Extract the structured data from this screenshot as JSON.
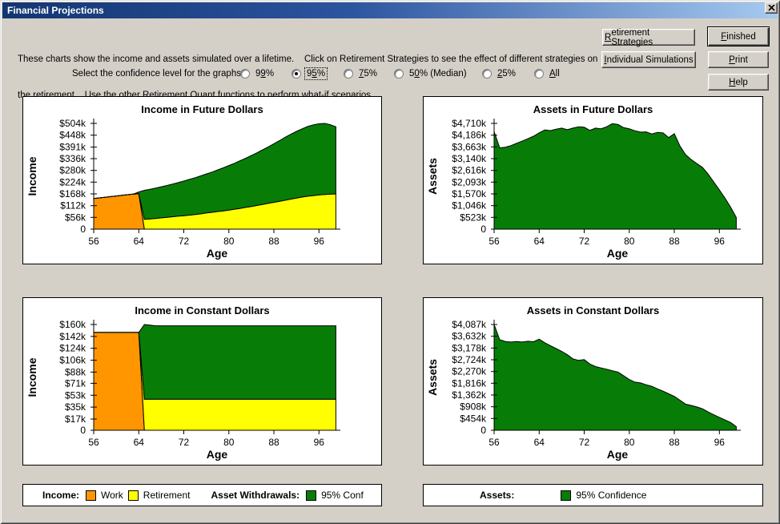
{
  "window": {
    "title": "Financial Projections"
  },
  "instructions": {
    "line1": "These charts show the income and assets simulated over a lifetime.    Click on Retirement Strategies to see the effect of different strategies on",
    "line2": "the retirement.   Use the other Retirement Quant functions to perform what-if scenarios."
  },
  "confidence": {
    "label": "Select the confidence level for the graphs",
    "options": [
      {
        "label": "99%",
        "accel_index": 1,
        "selected": false
      },
      {
        "label": "95%",
        "accel_index": 1,
        "selected": true
      },
      {
        "label": "75%",
        "accel_index": 0,
        "selected": false
      },
      {
        "label": "50% (Median)",
        "accel_index": 1,
        "selected": false
      },
      {
        "label": "25%",
        "accel_index": 0,
        "selected": false
      },
      {
        "label": "All",
        "accel_index": 0,
        "selected": false
      }
    ]
  },
  "buttons": {
    "retirement_strategies": {
      "label": "Retirement Strategies",
      "accel_index": 0
    },
    "finished": {
      "label": "Finished",
      "accel_index": 0
    },
    "individual_simulations": {
      "label": "Individual Simulations",
      "accel_index": 0
    },
    "print": {
      "label": "Print",
      "accel_index": 0
    },
    "help": {
      "label": "Help",
      "accel_index": 0
    }
  },
  "legend_income": {
    "income_label": "Income:",
    "work_label": "Work",
    "retirement_label": "Retirement",
    "withdrawals_label": "Asset Withdrawals:",
    "withdrawals_conf_label": "95% Conf"
  },
  "legend_assets": {
    "assets_label": "Assets:",
    "conf_label": "95% Confidence"
  },
  "colors": {
    "work": "#FF9600",
    "retirement": "#FFFF00",
    "confidence": "#077D07",
    "axis": "#000000"
  },
  "chart_data": [
    {
      "id": "income-future",
      "type": "area",
      "stacked": true,
      "title": "Income in Future Dollars",
      "xlabel": "Age",
      "ylabel": "Income",
      "x": [
        56,
        57,
        58,
        59,
        60,
        61,
        62,
        63,
        64,
        65,
        66,
        67,
        68,
        69,
        70,
        71,
        72,
        73,
        74,
        75,
        76,
        77,
        78,
        79,
        80,
        81,
        82,
        83,
        84,
        85,
        86,
        87,
        88,
        89,
        90,
        91,
        92,
        93,
        94,
        95,
        96,
        97,
        98,
        99
      ],
      "series": [
        {
          "name": "Work",
          "color_key": "work",
          "values": [
            146,
            149,
            152,
            155,
            158,
            161,
            164,
            167,
            169,
            0,
            0,
            0,
            0,
            0,
            0,
            0,
            0,
            0,
            0,
            0,
            0,
            0,
            0,
            0,
            0,
            0,
            0,
            0,
            0,
            0,
            0,
            0,
            0,
            0,
            0,
            0,
            0,
            0,
            0,
            0,
            0,
            0,
            0,
            0
          ]
        },
        {
          "name": "Retirement",
          "color_key": "retirement",
          "values": [
            0,
            0,
            0,
            0,
            0,
            0,
            0,
            0,
            0,
            47,
            49,
            51,
            54,
            56,
            59,
            62,
            64,
            67,
            70,
            73,
            77,
            80,
            84,
            87,
            91,
            95,
            99,
            104,
            108,
            113,
            118,
            123,
            128,
            133,
            138,
            143,
            148,
            153,
            157,
            160,
            163,
            165,
            167,
            168
          ]
        },
        {
          "name": "Asset Withdrawals 95% Conf",
          "color_key": "confidence",
          "values": [
            0,
            0,
            0,
            0,
            0,
            0,
            0,
            0,
            8,
            138,
            141,
            145,
            148,
            152,
            156,
            160,
            165,
            170,
            175,
            181,
            186,
            192,
            198,
            205,
            212,
            219,
            227,
            234,
            243,
            251,
            260,
            269,
            279,
            289,
            300,
            309,
            318,
            325,
            332,
            337,
            339,
            339,
            331,
            320
          ]
        }
      ],
      "yticks": {
        "values": [
          0,
          56,
          112,
          168,
          224,
          280,
          336,
          391,
          448,
          504
        ],
        "labels": [
          "0",
          "$56k",
          "$112k",
          "$168k",
          "$224k",
          "$280k",
          "$336k",
          "$391k",
          "$448k",
          "$504k"
        ]
      },
      "xticks": [
        56,
        64,
        72,
        80,
        88,
        96
      ],
      "xlim": [
        56,
        99.8
      ],
      "ylim": [
        0,
        504
      ],
      "grid": false,
      "units": "thousands of dollars"
    },
    {
      "id": "assets-future",
      "type": "area",
      "stacked": false,
      "title": "Assets in Future Dollars",
      "xlabel": "Age",
      "ylabel": "Assets",
      "x": [
        56,
        57,
        58,
        59,
        60,
        61,
        62,
        63,
        64,
        65,
        66,
        67,
        68,
        69,
        70,
        71,
        72,
        73,
        74,
        75,
        76,
        77,
        78,
        79,
        80,
        81,
        82,
        83,
        84,
        85,
        86,
        87,
        88,
        89,
        90,
        91,
        92,
        93,
        94,
        95,
        96,
        97,
        98,
        99
      ],
      "series": [
        {
          "name": "Assets 95% Confidence",
          "color_key": "confidence",
          "values": [
            4350,
            3620,
            3650,
            3720,
            3820,
            3920,
            4030,
            4140,
            4290,
            4420,
            4390,
            4450,
            4500,
            4430,
            4500,
            4560,
            4540,
            4400,
            4500,
            4470,
            4560,
            4700,
            4660,
            4520,
            4470,
            4380,
            4320,
            4330,
            4240,
            4310,
            4290,
            4080,
            4250,
            3700,
            3320,
            3100,
            2920,
            2750,
            2450,
            2100,
            1750,
            1380,
            980,
            520
          ]
        }
      ],
      "yticks": {
        "values": [
          0,
          523,
          1046,
          1570,
          2093,
          2616,
          3140,
          3663,
          4186,
          4710
        ],
        "labels": [
          "0",
          "$523k",
          "$1,046k",
          "$1,570k",
          "$2,093k",
          "$2,616k",
          "$3,140k",
          "$3,663k",
          "$4,186k",
          "$4,710k"
        ]
      },
      "xticks": [
        56,
        64,
        72,
        80,
        88,
        96
      ],
      "xlim": [
        56,
        99.8
      ],
      "ylim": [
        0,
        4710
      ],
      "grid": false,
      "units": "thousands of dollars"
    },
    {
      "id": "income-constant",
      "type": "area",
      "stacked": true,
      "title": "Income in Constant Dollars",
      "xlabel": "Age",
      "ylabel": "Income",
      "x": [
        56,
        57,
        58,
        59,
        60,
        61,
        62,
        63,
        64,
        65,
        66,
        67,
        68,
        69,
        70,
        71,
        72,
        73,
        74,
        75,
        76,
        77,
        78,
        79,
        80,
        81,
        82,
        83,
        84,
        85,
        86,
        87,
        88,
        89,
        90,
        91,
        92,
        93,
        94,
        95,
        96,
        97,
        98,
        99
      ],
      "series": [
        {
          "name": "Work",
          "color_key": "work",
          "values": [
            148,
            148,
            148,
            148,
            148,
            148,
            148,
            148,
            148,
            0,
            0,
            0,
            0,
            0,
            0,
            0,
            0,
            0,
            0,
            0,
            0,
            0,
            0,
            0,
            0,
            0,
            0,
            0,
            0,
            0,
            0,
            0,
            0,
            0,
            0,
            0,
            0,
            0,
            0,
            0,
            0,
            0,
            0,
            0
          ]
        },
        {
          "name": "Retirement",
          "color_key": "retirement",
          "values": [
            0,
            0,
            0,
            0,
            0,
            0,
            0,
            0,
            0,
            47,
            47,
            47,
            47,
            47,
            47,
            47,
            47,
            47,
            47,
            47,
            47,
            47,
            47,
            47,
            47,
            47,
            47,
            47,
            47,
            47,
            47,
            47,
            47,
            47,
            47,
            47,
            47,
            47,
            47,
            47,
            47,
            47,
            47,
            47
          ]
        },
        {
          "name": "Asset Withdrawals 95% Conf",
          "color_key": "confidence",
          "values": [
            0,
            0,
            0,
            0,
            0,
            0,
            0,
            0,
            0,
            113,
            112,
            111,
            111,
            111,
            111,
            111,
            111,
            111,
            111,
            111,
            111,
            111,
            111,
            111,
            111,
            111,
            111,
            111,
            111,
            111,
            111,
            111,
            111,
            111,
            111,
            111,
            111,
            111,
            111,
            111,
            111,
            111,
            111,
            111
          ]
        }
      ],
      "yticks": {
        "values": [
          0,
          17,
          35,
          53,
          71,
          88,
          106,
          124,
          142,
          160
        ],
        "labels": [
          "0",
          "$17k",
          "$35k",
          "$53k",
          "$71k",
          "$88k",
          "$106k",
          "$124k",
          "$142k",
          "$160k"
        ]
      },
      "xticks": [
        56,
        64,
        72,
        80,
        88,
        96
      ],
      "xlim": [
        56,
        99.8
      ],
      "ylim": [
        0,
        160
      ],
      "grid": false,
      "units": "thousands of dollars"
    },
    {
      "id": "assets-constant",
      "type": "area",
      "stacked": false,
      "title": "Assets in Constant Dollars",
      "xlabel": "Age",
      "ylabel": "Assets",
      "x": [
        56,
        57,
        58,
        59,
        60,
        61,
        62,
        63,
        64,
        65,
        66,
        67,
        68,
        69,
        70,
        71,
        72,
        73,
        74,
        75,
        76,
        77,
        78,
        79,
        80,
        81,
        82,
        83,
        84,
        85,
        86,
        87,
        88,
        89,
        90,
        91,
        92,
        93,
        94,
        95,
        96,
        97,
        98,
        99
      ],
      "series": [
        {
          "name": "Assets 95% Confidence",
          "color_key": "confidence",
          "values": [
            4087,
            3500,
            3430,
            3410,
            3430,
            3410,
            3440,
            3420,
            3520,
            3380,
            3270,
            3160,
            3050,
            2920,
            2760,
            2700,
            2730,
            2560,
            2460,
            2410,
            2360,
            2300,
            2250,
            2110,
            1960,
            1860,
            1830,
            1760,
            1700,
            1600,
            1510,
            1410,
            1310,
            1160,
            1010,
            960,
            900,
            830,
            710,
            600,
            500,
            400,
            300,
            140
          ]
        }
      ],
      "yticks": {
        "values": [
          0,
          454,
          908,
          1362,
          1816,
          2270,
          2724,
          3178,
          3632,
          4087
        ],
        "labels": [
          "0",
          "$454k",
          "$908k",
          "$1,362k",
          "$1,816k",
          "$2,270k",
          "$2,724k",
          "$3,178k",
          "$3,632k",
          "$4,087k"
        ]
      },
      "xticks": [
        56,
        64,
        72,
        80,
        88,
        96
      ],
      "xlim": [
        56,
        99.8
      ],
      "ylim": [
        0,
        4087
      ],
      "grid": false,
      "units": "thousands of dollars"
    }
  ]
}
